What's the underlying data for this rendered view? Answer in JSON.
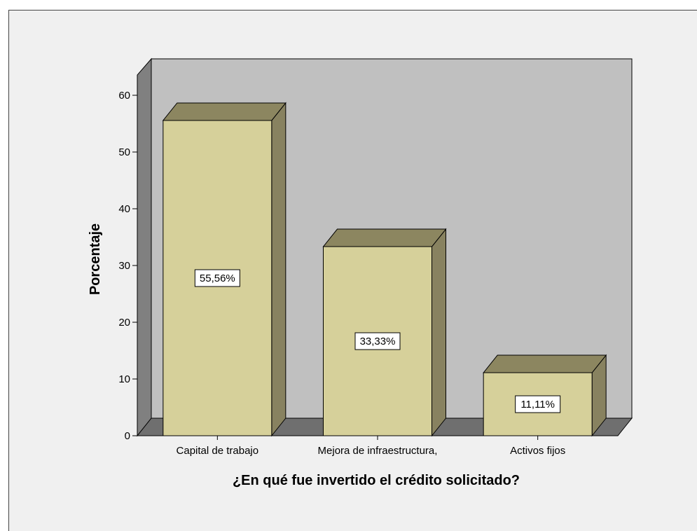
{
  "chart_data": {
    "type": "bar",
    "categories": [
      "Capital de trabajo",
      "Mejora de infraestructura,",
      "Activos fijos"
    ],
    "values": [
      55.56,
      33.33,
      11.11
    ],
    "data_labels": [
      "55,56%",
      "33,33%",
      "11,11%"
    ],
    "xlabel": "¿En qué fue invertido el crédito solicitado?",
    "ylabel": "Porcentaje",
    "yticks": [
      0,
      10,
      20,
      30,
      40,
      50,
      60
    ],
    "ylim": [
      0,
      60
    ],
    "grid": false,
    "legend": "none",
    "colors": {
      "bar_front": "#d6d09a",
      "bar_top": "#8c8660",
      "bar_side": "#888260",
      "back_wall": "#c0c0c0",
      "side_wall": "#808080",
      "floor": "#6f6f6f",
      "frame_bg": "#f0f0f0"
    }
  }
}
